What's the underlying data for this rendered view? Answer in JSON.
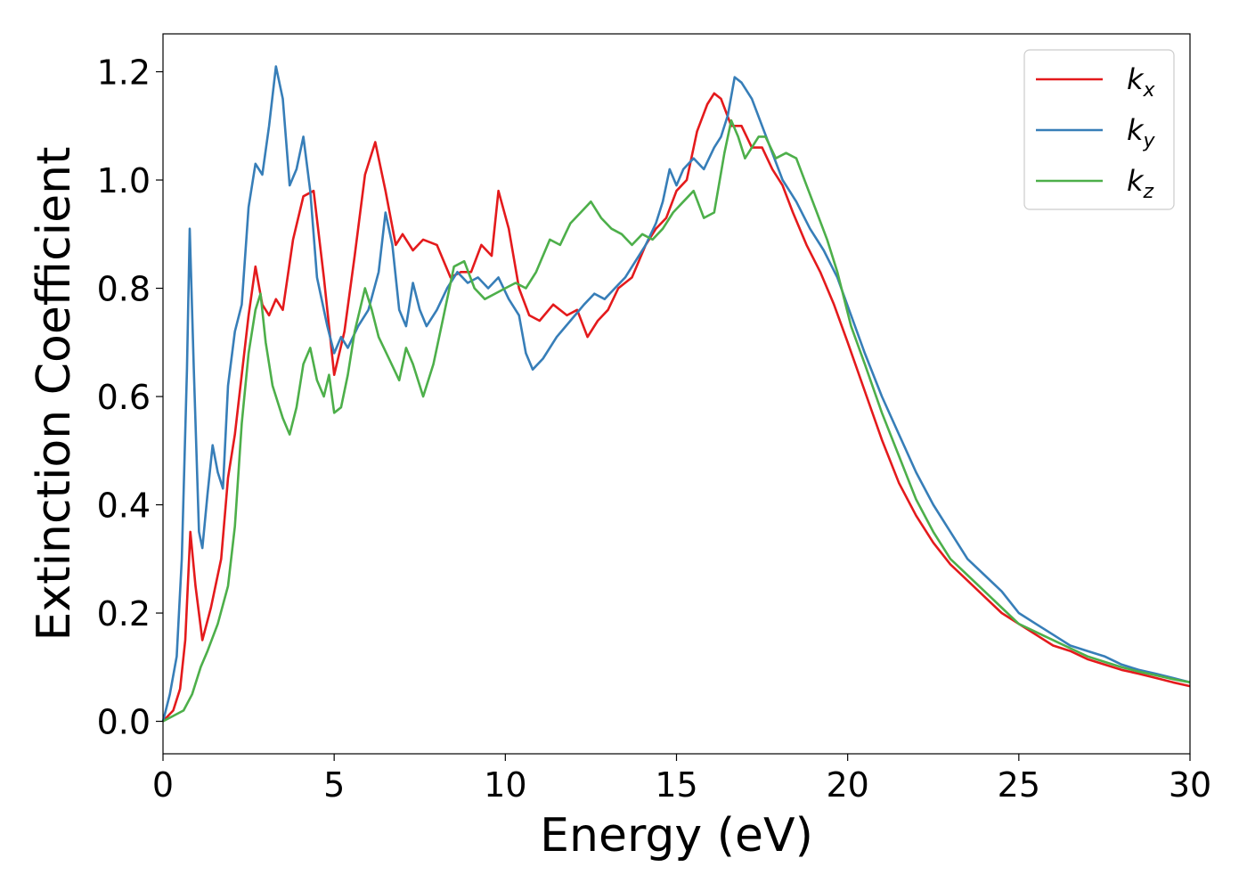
{
  "chart_data": {
    "type": "line",
    "xlabel": "Energy (eV)",
    "ylabel": "Extinction Coefficient",
    "xlim": [
      0,
      30
    ],
    "ylim": [
      -0.06,
      1.27
    ],
    "xticks": [
      0,
      5,
      10,
      15,
      20,
      25,
      30
    ],
    "xtick_labels": [
      "0",
      "5",
      "10",
      "15",
      "20",
      "25",
      "30"
    ],
    "yticks": [
      0.0,
      0.2,
      0.4,
      0.6,
      0.8,
      1.0,
      1.2
    ],
    "ytick_labels": [
      "0.0",
      "0.2",
      "0.4",
      "0.6",
      "0.8",
      "1.0",
      "1.2"
    ],
    "grid": false,
    "legend_position": "top-right",
    "series": [
      {
        "name": "k_x",
        "label_base": "k",
        "label_sub": "x",
        "color": "#e41a1c",
        "x": [
          0,
          0.3,
          0.5,
          0.65,
          0.8,
          0.95,
          1.15,
          1.4,
          1.7,
          1.9,
          2.1,
          2.3,
          2.5,
          2.7,
          2.9,
          3.1,
          3.3,
          3.5,
          3.8,
          4.1,
          4.4,
          4.7,
          5.0,
          5.3,
          5.6,
          5.9,
          6.2,
          6.5,
          6.8,
          7.0,
          7.3,
          7.6,
          8.0,
          8.4,
          8.7,
          9.0,
          9.3,
          9.6,
          9.8,
          10.1,
          10.4,
          10.7,
          11.0,
          11.4,
          11.8,
          12.1,
          12.4,
          12.7,
          13.0,
          13.3,
          13.7,
          14.1,
          14.4,
          14.7,
          15.0,
          15.3,
          15.6,
          15.9,
          16.1,
          16.3,
          16.6,
          16.9,
          17.2,
          17.5,
          17.8,
          18.1,
          18.4,
          18.8,
          19.2,
          19.6,
          20.0,
          20.5,
          21.0,
          21.5,
          22.0,
          22.5,
          23.0,
          23.5,
          24.0,
          24.5,
          25.0,
          25.5,
          26.0,
          26.5,
          27.0,
          27.5,
          28.0,
          28.5,
          29.0,
          29.5,
          30.0
        ],
        "values": [
          0.0,
          0.02,
          0.06,
          0.15,
          0.35,
          0.25,
          0.15,
          0.21,
          0.3,
          0.45,
          0.53,
          0.64,
          0.75,
          0.84,
          0.77,
          0.75,
          0.78,
          0.76,
          0.89,
          0.97,
          0.98,
          0.82,
          0.64,
          0.72,
          0.86,
          1.01,
          1.07,
          0.98,
          0.88,
          0.9,
          0.87,
          0.89,
          0.88,
          0.82,
          0.83,
          0.83,
          0.88,
          0.86,
          0.98,
          0.91,
          0.8,
          0.75,
          0.74,
          0.77,
          0.75,
          0.76,
          0.71,
          0.74,
          0.76,
          0.8,
          0.82,
          0.88,
          0.91,
          0.93,
          0.98,
          1.0,
          1.09,
          1.14,
          1.16,
          1.15,
          1.1,
          1.1,
          1.06,
          1.06,
          1.02,
          0.99,
          0.94,
          0.88,
          0.83,
          0.77,
          0.7,
          0.61,
          0.52,
          0.44,
          0.38,
          0.33,
          0.29,
          0.26,
          0.23,
          0.2,
          0.18,
          0.16,
          0.14,
          0.13,
          0.115,
          0.105,
          0.095,
          0.088,
          0.08,
          0.072,
          0.065
        ]
      },
      {
        "name": "k_y",
        "label_base": "k",
        "label_sub": "y",
        "color": "#377eb8",
        "x": [
          0,
          0.2,
          0.4,
          0.55,
          0.7,
          0.78,
          0.9,
          1.05,
          1.15,
          1.3,
          1.45,
          1.6,
          1.75,
          1.9,
          2.1,
          2.3,
          2.5,
          2.7,
          2.9,
          3.1,
          3.3,
          3.5,
          3.7,
          3.9,
          4.1,
          4.3,
          4.5,
          4.8,
          5.0,
          5.2,
          5.4,
          5.7,
          6.0,
          6.3,
          6.5,
          6.7,
          6.9,
          7.1,
          7.3,
          7.5,
          7.7,
          8.0,
          8.3,
          8.6,
          8.9,
          9.2,
          9.5,
          9.8,
          10.1,
          10.4,
          10.6,
          10.8,
          11.1,
          11.5,
          11.9,
          12.3,
          12.6,
          12.9,
          13.2,
          13.5,
          13.8,
          14.1,
          14.4,
          14.6,
          14.8,
          15.0,
          15.2,
          15.5,
          15.8,
          16.1,
          16.3,
          16.5,
          16.7,
          16.9,
          17.2,
          17.5,
          17.8,
          18.1,
          18.5,
          18.9,
          19.3,
          19.7,
          20.1,
          20.5,
          21.0,
          21.5,
          22.0,
          22.5,
          23.0,
          23.5,
          24.0,
          24.5,
          25.0,
          25.5,
          26.0,
          26.5,
          27.0,
          27.5,
          28.0,
          28.5,
          29.0,
          29.5,
          30.0
        ],
        "values": [
          0.0,
          0.05,
          0.12,
          0.3,
          0.65,
          0.91,
          0.65,
          0.35,
          0.32,
          0.42,
          0.51,
          0.46,
          0.43,
          0.62,
          0.72,
          0.77,
          0.95,
          1.03,
          1.01,
          1.1,
          1.21,
          1.15,
          0.99,
          1.02,
          1.08,
          0.98,
          0.82,
          0.73,
          0.68,
          0.71,
          0.69,
          0.73,
          0.76,
          0.83,
          0.94,
          0.88,
          0.76,
          0.73,
          0.81,
          0.76,
          0.73,
          0.76,
          0.8,
          0.83,
          0.81,
          0.82,
          0.8,
          0.82,
          0.78,
          0.75,
          0.68,
          0.65,
          0.67,
          0.71,
          0.74,
          0.77,
          0.79,
          0.78,
          0.8,
          0.82,
          0.85,
          0.88,
          0.92,
          0.96,
          1.02,
          0.99,
          1.02,
          1.04,
          1.02,
          1.06,
          1.08,
          1.12,
          1.19,
          1.18,
          1.15,
          1.1,
          1.05,
          1.0,
          0.96,
          0.91,
          0.87,
          0.82,
          0.75,
          0.68,
          0.6,
          0.53,
          0.46,
          0.4,
          0.35,
          0.3,
          0.27,
          0.24,
          0.2,
          0.18,
          0.16,
          0.14,
          0.13,
          0.12,
          0.105,
          0.095,
          0.088,
          0.08,
          0.072
        ]
      },
      {
        "name": "k_z",
        "label_base": "k",
        "label_sub": "z",
        "color": "#4daf4a",
        "x": [
          0,
          0.3,
          0.6,
          0.85,
          1.1,
          1.3,
          1.6,
          1.9,
          2.1,
          2.3,
          2.5,
          2.7,
          2.85,
          3.0,
          3.2,
          3.5,
          3.7,
          3.9,
          4.1,
          4.3,
          4.5,
          4.7,
          4.85,
          5.0,
          5.2,
          5.4,
          5.6,
          5.9,
          6.1,
          6.3,
          6.6,
          6.9,
          7.1,
          7.3,
          7.6,
          7.9,
          8.2,
          8.5,
          8.8,
          9.1,
          9.4,
          9.7,
          10.0,
          10.3,
          10.6,
          10.9,
          11.3,
          11.6,
          11.9,
          12.2,
          12.5,
          12.8,
          13.1,
          13.4,
          13.7,
          14.0,
          14.3,
          14.6,
          14.9,
          15.2,
          15.5,
          15.8,
          16.1,
          16.4,
          16.6,
          16.8,
          17.0,
          17.2,
          17.4,
          17.6,
          17.9,
          18.2,
          18.5,
          18.8,
          19.1,
          19.4,
          19.7,
          20.1,
          20.5,
          21.0,
          21.5,
          22.0,
          22.5,
          23.0,
          23.5,
          24.0,
          24.5,
          25.0,
          25.5,
          26.0,
          26.5,
          27.0,
          27.5,
          28.0,
          28.5,
          29.0,
          29.5,
          30.0
        ],
        "values": [
          0.0,
          0.01,
          0.02,
          0.05,
          0.1,
          0.13,
          0.18,
          0.25,
          0.36,
          0.55,
          0.68,
          0.76,
          0.79,
          0.7,
          0.62,
          0.56,
          0.53,
          0.58,
          0.66,
          0.69,
          0.63,
          0.6,
          0.64,
          0.57,
          0.58,
          0.64,
          0.72,
          0.8,
          0.76,
          0.71,
          0.67,
          0.63,
          0.69,
          0.66,
          0.6,
          0.66,
          0.75,
          0.84,
          0.85,
          0.8,
          0.78,
          0.79,
          0.8,
          0.81,
          0.8,
          0.83,
          0.89,
          0.88,
          0.92,
          0.94,
          0.96,
          0.93,
          0.91,
          0.9,
          0.88,
          0.9,
          0.89,
          0.91,
          0.94,
          0.96,
          0.98,
          0.93,
          0.94,
          1.05,
          1.11,
          1.08,
          1.04,
          1.06,
          1.08,
          1.08,
          1.04,
          1.05,
          1.04,
          0.99,
          0.94,
          0.89,
          0.83,
          0.73,
          0.66,
          0.57,
          0.49,
          0.41,
          0.35,
          0.3,
          0.27,
          0.24,
          0.21,
          0.18,
          0.165,
          0.15,
          0.135,
          0.12,
          0.11,
          0.1,
          0.092,
          0.085,
          0.078,
          0.072
        ]
      }
    ]
  }
}
